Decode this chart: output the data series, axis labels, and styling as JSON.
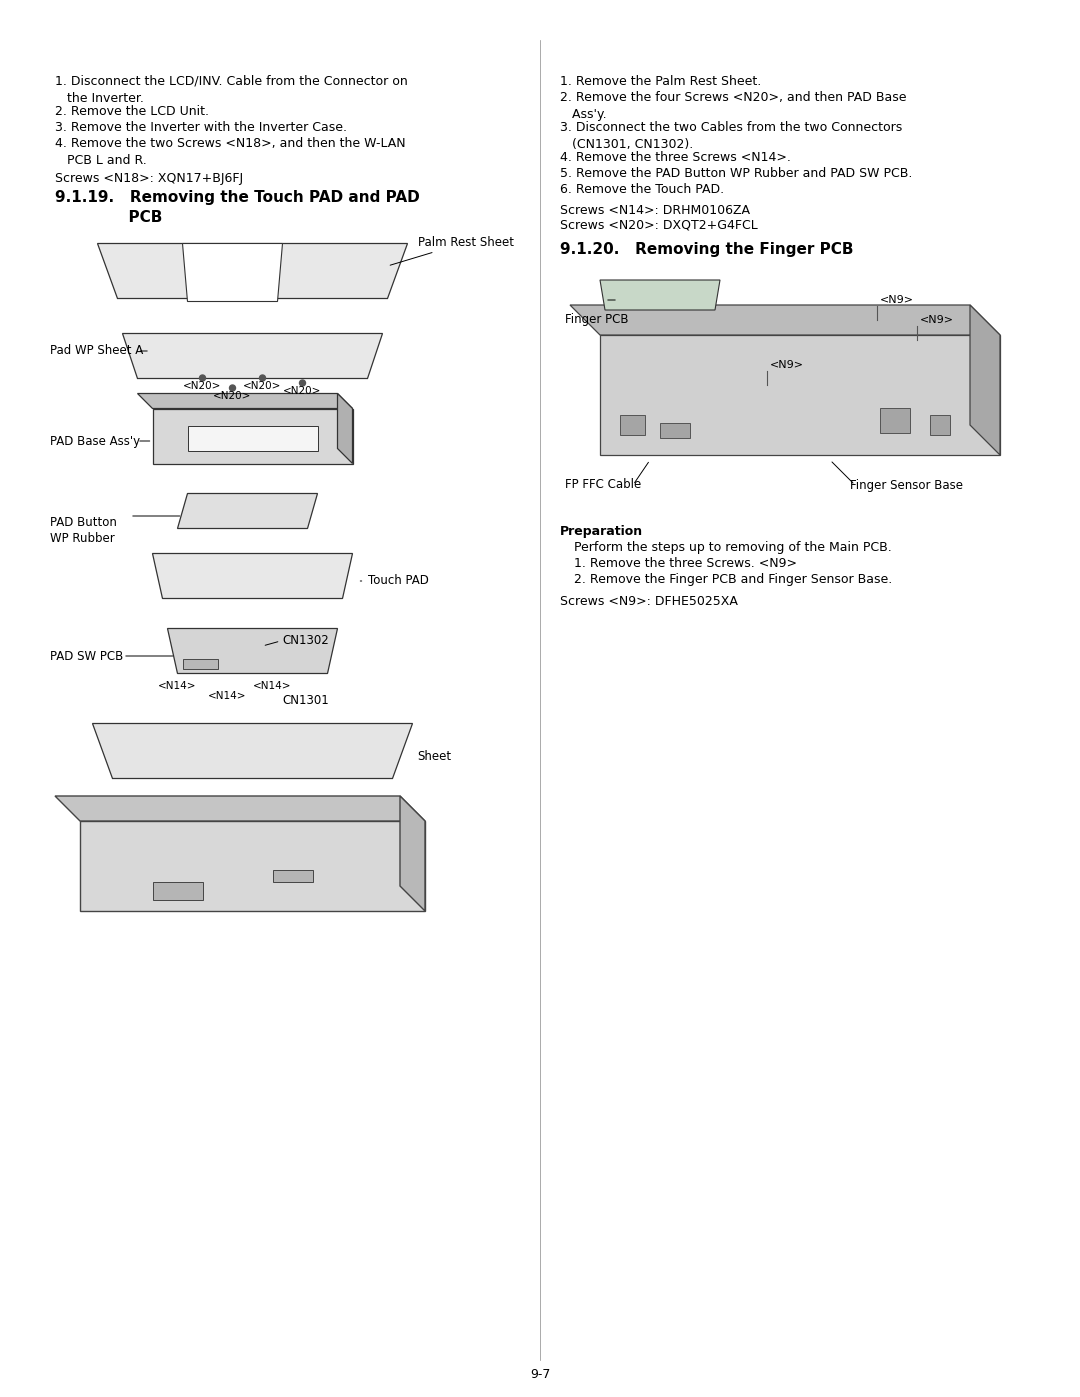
{
  "page_background": "#ffffff",
  "page_number": "9-7",
  "left_column": {
    "intro_steps": [
      "1. Disconnect the LCD/INV. Cable from the Connector on\n   the Inverter.",
      "2. Remove the LCD Unit.",
      "3. Remove the Inverter with the Inverter Case.",
      "4. Remove the two Screws <N18>, and then the W-LAN\n   PCB L and R."
    ],
    "screw_note": "Screws <N18>: XQN17+BJ6FJ",
    "section_title": "9.1.19.   Removing the Touch PAD and PAD\n              PCB",
    "diagram_labels": [
      "Palm Rest Sheet",
      "Pad WP Sheet A",
      "<N20>",
      "<N20>",
      "<N20>",
      "<N20>",
      "PAD Base Ass'y",
      "PAD Button\nWP Rubber",
      "Touch PAD",
      "PAD SW PCB",
      "CN1302",
      "<N14>",
      "<N14>",
      "<N14>",
      "CN1301",
      "Sheet"
    ]
  },
  "right_column": {
    "steps": [
      "1. Remove the Palm Rest Sheet.",
      "2. Remove the four Screws <N20>, and then PAD Base\n   Ass'y.",
      "3. Disconnect the two Cables from the two Connectors\n   (CN1301, CN1302).",
      "4. Remove the three Screws <N14>.",
      "5. Remove the PAD Button WP Rubber and PAD SW PCB.",
      "6. Remove the Touch PAD."
    ],
    "screw_notes": [
      "Screws <N14>: DRHM0106ZA",
      "Screws <N20>: DXQT2+G4FCL"
    ],
    "section_title": "9.1.20.   Removing the Finger PCB",
    "diagram_labels": [
      "Finger PCB",
      "<N9>",
      "<N9>",
      "<N9>",
      "FP FFC Cable",
      "Finger Sensor Base"
    ],
    "preparation_title": "Preparation",
    "preparation_text": "Perform the steps up to removing of the Main PCB.",
    "preparation_steps": [
      "1. Remove the three Screws. <N9>",
      "2. Remove the Finger PCB and Finger Sensor Base."
    ],
    "screw_note_final": "Screws <N9>: DFHE5025XA"
  }
}
